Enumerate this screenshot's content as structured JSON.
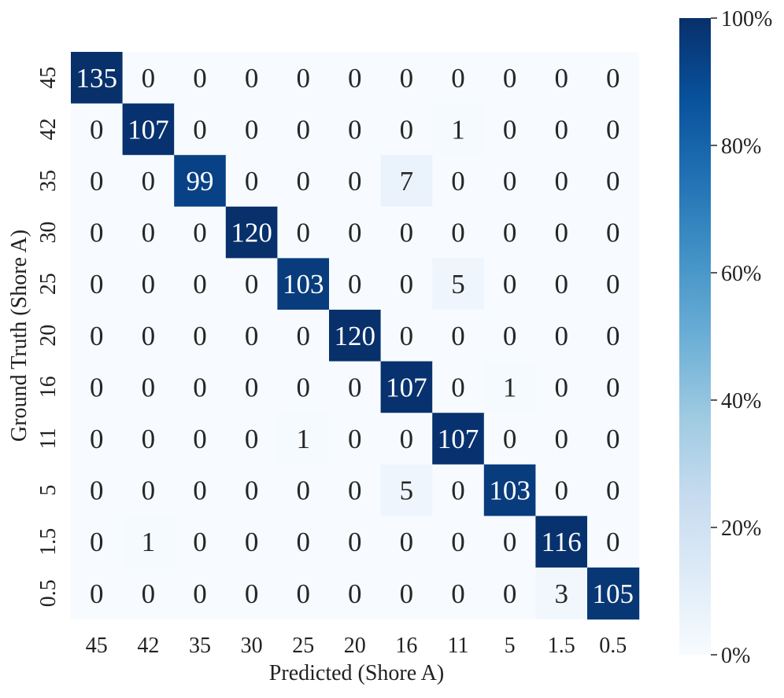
{
  "chart_data": {
    "type": "heatmap",
    "title": "",
    "xlabel": "Predicted (Shore A)",
    "ylabel": "Ground Truth (Shore A)",
    "x_categories": [
      "45",
      "42",
      "35",
      "30",
      "25",
      "20",
      "16",
      "11",
      "5",
      "1.5",
      "0.5"
    ],
    "y_categories": [
      "45",
      "42",
      "35",
      "30",
      "25",
      "20",
      "16",
      "11",
      "5",
      "1.5",
      "0.5"
    ],
    "values": [
      [
        135,
        0,
        0,
        0,
        0,
        0,
        0,
        0,
        0,
        0,
        0
      ],
      [
        0,
        107,
        0,
        0,
        0,
        0,
        0,
        1,
        0,
        0,
        0
      ],
      [
        0,
        0,
        99,
        0,
        0,
        0,
        7,
        0,
        0,
        0,
        0
      ],
      [
        0,
        0,
        0,
        120,
        0,
        0,
        0,
        0,
        0,
        0,
        0
      ],
      [
        0,
        0,
        0,
        0,
        103,
        0,
        0,
        5,
        0,
        0,
        0
      ],
      [
        0,
        0,
        0,
        0,
        0,
        120,
        0,
        0,
        0,
        0,
        0
      ],
      [
        0,
        0,
        0,
        0,
        0,
        0,
        107,
        0,
        1,
        0,
        0
      ],
      [
        0,
        0,
        0,
        0,
        1,
        0,
        0,
        107,
        0,
        0,
        0
      ],
      [
        0,
        0,
        0,
        0,
        0,
        0,
        5,
        0,
        103,
        0,
        0
      ],
      [
        0,
        1,
        0,
        0,
        0,
        0,
        0,
        0,
        0,
        116,
        0
      ],
      [
        0,
        0,
        0,
        0,
        0,
        0,
        0,
        0,
        0,
        3,
        105
      ]
    ],
    "color_scale": {
      "name": "Blues",
      "normalization": "row-percent",
      "range": [
        0,
        100
      ],
      "low_color": "#f7fbff",
      "high_color": "#08306b",
      "ticks": [
        "0%",
        "20%",
        "40%",
        "60%",
        "80%",
        "100%"
      ],
      "tick_values": [
        0,
        20,
        40,
        60,
        80,
        100
      ]
    },
    "grid": false,
    "legend": "colorbar-right"
  }
}
